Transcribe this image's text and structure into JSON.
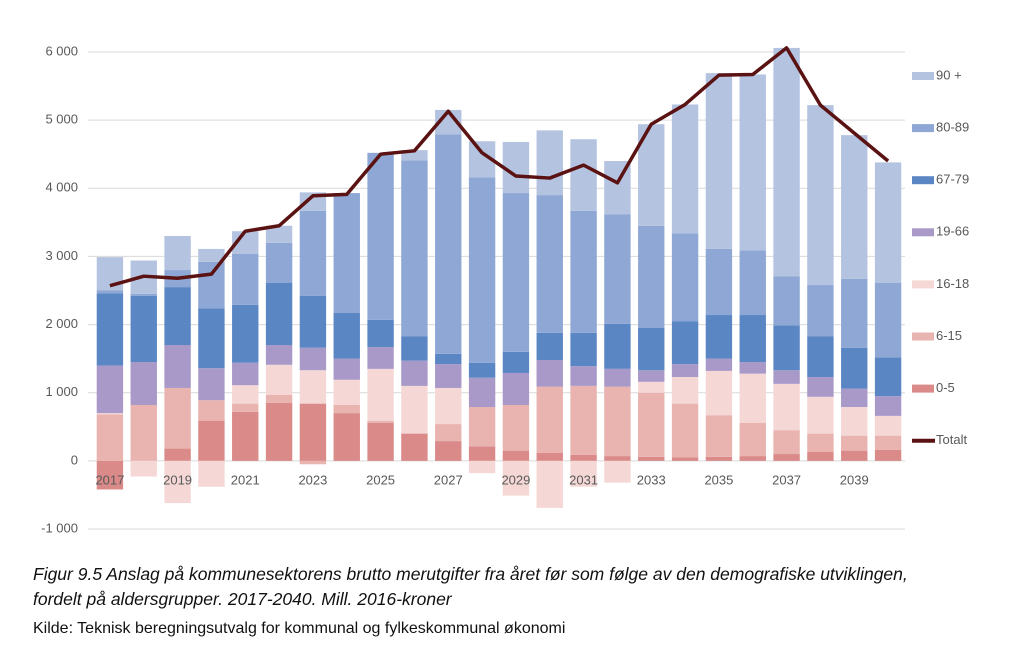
{
  "chart_data": {
    "type": "bar",
    "stacked": true,
    "categories": [
      "2017",
      null,
      "2019",
      null,
      "2021",
      null,
      "2023",
      null,
      "2025",
      null,
      "2027",
      null,
      "2029",
      null,
      "2031",
      null,
      "2033",
      null,
      "2035",
      null,
      "2037",
      null,
      "2039",
      null
    ],
    "series": [
      {
        "name": "0-5",
        "color": "#d98a89",
        "values": [
          -420,
          0,
          180,
          590,
          720,
          850,
          840,
          700,
          560,
          400,
          290,
          210,
          150,
          120,
          90,
          70,
          60,
          50,
          60,
          70,
          100,
          130,
          150,
          160
        ]
      },
      {
        "name": "6-15",
        "color": "#e9b3b0",
        "values": [
          680,
          820,
          890,
          300,
          120,
          120,
          -50,
          120,
          30,
          0,
          250,
          580,
          670,
          970,
          1010,
          1020,
          940,
          790,
          610,
          490,
          350,
          270,
          220,
          210
        ]
      },
      {
        "name": "16-18",
        "color": "#f5d8d6",
        "values": [
          20,
          -230,
          -620,
          -380,
          270,
          440,
          490,
          370,
          760,
          700,
          530,
          -180,
          -510,
          -690,
          -380,
          -320,
          160,
          390,
          650,
          720,
          680,
          540,
          420,
          290
        ]
      },
      {
        "name": "19-66",
        "color": "#a899c8",
        "values": [
          700,
          630,
          630,
          470,
          330,
          290,
          330,
          310,
          320,
          370,
          350,
          430,
          470,
          390,
          290,
          260,
          170,
          190,
          180,
          170,
          200,
          290,
          270,
          290
        ]
      },
      {
        "name": "67-79",
        "color": "#5b86c4",
        "values": [
          1060,
          970,
          850,
          880,
          850,
          910,
          760,
          670,
          400,
          360,
          150,
          220,
          310,
          400,
          490,
          660,
          620,
          630,
          640,
          690,
          660,
          600,
          600,
          570
        ]
      },
      {
        "name": "80-89",
        "color": "#8ea7d4",
        "values": [
          40,
          30,
          250,
          680,
          750,
          590,
          1250,
          1760,
          2450,
          2580,
          3220,
          2720,
          2330,
          2020,
          1790,
          1610,
          1500,
          1290,
          970,
          950,
          720,
          750,
          1010,
          1090
        ]
      },
      {
        "name": "90 +",
        "color": "#b4c3e0",
        "values": [
          490,
          490,
          500,
          190,
          330,
          250,
          270,
          0,
          0,
          150,
          360,
          530,
          750,
          950,
          1050,
          780,
          1490,
          1890,
          2580,
          2580,
          3350,
          2640,
          2110,
          1770
        ]
      },
      {
        "name": "Totalt",
        "type": "line",
        "color": "#5a1212",
        "values": [
          2570,
          2710,
          2680,
          2740,
          3370,
          3450,
          3890,
          3910,
          4500,
          4550,
          5130,
          4520,
          4180,
          4150,
          4340,
          4080,
          4940,
          5230,
          5660,
          5670,
          6060,
          5220,
          4810,
          4400
        ]
      }
    ],
    "ylim": [
      -1000,
      6000
    ],
    "yticks": [
      {
        "value": -1000,
        "label": "-1 000"
      },
      0,
      {
        "value": 1000,
        "label": "1 000"
      },
      {
        "value": 2000,
        "label": "2 000"
      },
      {
        "value": 3000,
        "label": "3 000"
      },
      {
        "value": 4000,
        "label": "4 000"
      },
      {
        "value": 5000,
        "label": "5 000"
      },
      {
        "value": 6000,
        "label": "6 000"
      }
    ],
    "grid": true,
    "legend": "right",
    "caption": [
      "Figur 9.5 Anslag på kommunesektorens brutto merutgifter fra året før som følge av den demografiske utviklingen,",
      "fordelt på aldersgrupper. 2017-2040. Mill. 2016-kroner"
    ],
    "source": "Kilde: Teknisk beregningsutvalg for kommunal og fylkeskommunal økonomi"
  }
}
